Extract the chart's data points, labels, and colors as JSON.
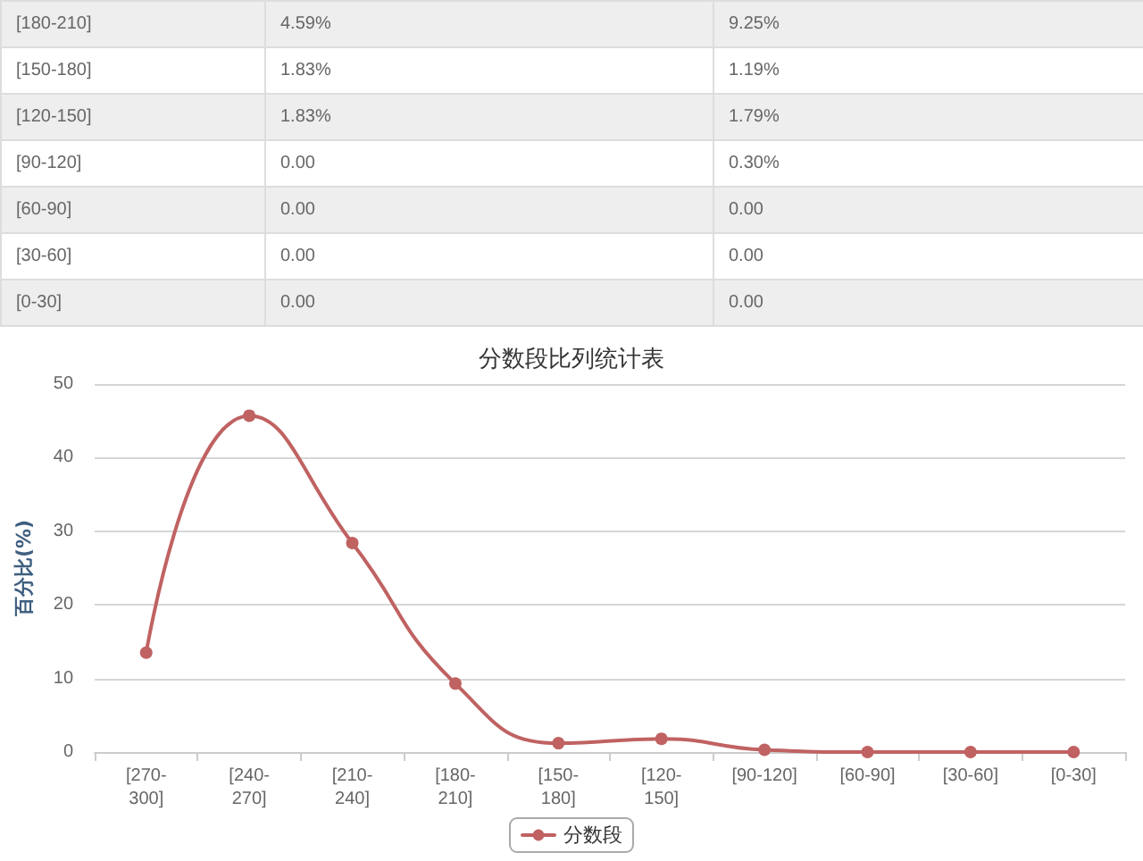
{
  "chart_data": [
    {
      "type": "other",
      "categories": [
        "[180-210]",
        "[150-180]",
        "[120-150]",
        "[90-120]",
        "[60-90]",
        "[30-60]",
        "[0-30]"
      ],
      "series": [
        {
          "colors": [
            "#eeeeee",
            "#ffffff",
            "#eeeeee",
            "#ffffff",
            "#eeeeee",
            "#ffffff",
            "#eeeeee"
          ],
          "values": [
            4.59,
            1.83,
            1.83,
            0,
            0,
            0,
            0
          ],
          "value_labels": [
            "4.59%",
            "1.83%",
            "1.83%",
            "0.00",
            "0.00",
            "0.00",
            "0.00"
          ]
        },
        {
          "colors": [
            "#eeeeee",
            "#ffffff",
            "#eeeeee",
            "#ffffff",
            "#eeeeee",
            "#ffffff",
            "#eeeeee"
          ],
          "values": [
            9.25,
            1.19,
            1.79,
            0.3,
            0,
            0,
            0
          ],
          "value_labels": [
            "9.25%",
            "1.19%",
            "1.79%",
            "0.30%",
            "0.00",
            "0.00",
            "0.00"
          ]
        }
      ]
    },
    {
      "type": "line",
      "title": "分数段比列统计表",
      "ylabel": "百分比(%)",
      "categories": [
        "[270-300]",
        "[240-270]",
        "[210-240]",
        "[180-210]",
        "[150-180]",
        "[120-150]",
        "[90-120]",
        "[60-90]",
        "[30-60]",
        "[0-30]"
      ],
      "series": [
        {
          "name": "分数段",
          "color": "#c06262",
          "values": [
            13.5,
            45.7,
            28.4,
            9.3,
            1.2,
            1.8,
            0.3,
            0,
            0,
            0
          ]
        }
      ],
      "ylim": [
        0,
        50
      ],
      "yticks": [
        0,
        10,
        20,
        30,
        40,
        50
      ],
      "grid": "y",
      "legend": "bottom",
      "marker": "circle",
      "line_style": "solid"
    }
  ]
}
